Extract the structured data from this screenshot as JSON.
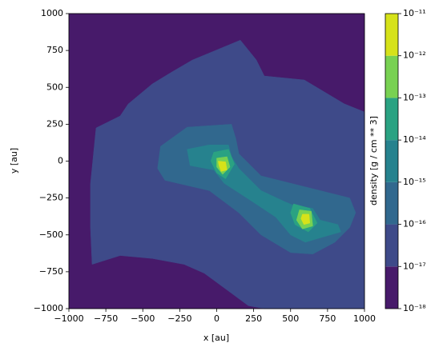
{
  "chart_data": {
    "type": "contourf",
    "xlabel": "x [au]",
    "ylabel": "y [au]",
    "colorbar_label": "density [g / cm ** 3]",
    "xlim": [
      -1000,
      1000
    ],
    "ylim": [
      -1000,
      1000
    ],
    "xticks": [
      {
        "value": -1000,
        "label": "−1000"
      },
      {
        "value": -750,
        "label": "−750"
      },
      {
        "value": -500,
        "label": "−500"
      },
      {
        "value": -250,
        "label": "−250"
      },
      0,
      250,
      500,
      750,
      1000
    ],
    "yticks": [
      {
        "value": -1000,
        "label": "−1000"
      },
      {
        "value": -750,
        "label": "−750"
      },
      {
        "value": -500,
        "label": "−500"
      },
      {
        "value": -250,
        "label": "−250"
      },
      0,
      250,
      500,
      750,
      1000
    ],
    "levels": [
      1e-18,
      1e-17,
      1e-16,
      1e-15,
      1e-14,
      1e-13,
      1e-12,
      1e-11
    ],
    "colors": [
      "#471a6a",
      "#3e4a89",
      "#31688e",
      "#26828e",
      "#2aa282",
      "#78d152",
      "#d6e21a"
    ],
    "log_colorbar": true,
    "cbar_ticks": [
      {
        "value": 1e-18,
        "label": "10⁻¹⁸"
      },
      {
        "value": 1e-17,
        "label": "10⁻¹⁷"
      },
      {
        "value": 1e-16,
        "label": "10⁻¹⁶"
      },
      {
        "value": 1e-15,
        "label": "10⁻¹⁵"
      },
      {
        "value": 1e-14,
        "label": "10⁻¹⁴"
      },
      {
        "value": 1e-13,
        "label": "10⁻¹³"
      },
      {
        "value": 1e-12,
        "label": "10⁻¹²"
      },
      {
        "value": 1e-11,
        "label": "10⁻¹¹"
      }
    ],
    "contours": [
      {
        "level": 1e-18,
        "polygons": [
          {
            "x": [
              -1000,
              1000,
              1000,
              -1000
            ],
            "y": [
              1000,
              1000,
              -1000,
              -1000
            ]
          }
        ]
      },
      {
        "level": 1e-17,
        "polygons": [
          {
            "x": [
              -310,
              -165,
              160,
              268,
              322,
              593,
              864,
              1000,
              1000,
              322,
              214,
              79,
              -84,
              -220,
              -436,
              -653,
              -843,
              -854,
              -854,
              -816,
              -653,
              -599,
              -436
            ],
            "y": [
              600,
              685,
              820,
              686,
              577,
              550,
              388,
              333,
              -1000,
              -1000,
              -980,
              -880,
              -760,
              -700,
              -660,
              -640,
              -700,
              -450,
              -154,
              225,
              306,
              387,
              523
            ]
          }
        ]
      },
      {
        "level": 1e-16,
        "polygons": [
          {
            "x": [
              -380,
              -200,
              100,
              130,
              150,
              300,
              500,
              700,
              900,
              940,
              900,
              800,
              650,
              500,
              300,
              150,
              -50,
              -350,
              -400
            ],
            "y": [
              100,
              230,
              250,
              150,
              50,
              -100,
              -150,
              -200,
              -250,
              -350,
              -450,
              -550,
              -630,
              -620,
              -500,
              -350,
              -200,
              -130,
              -50
            ]
          }
        ]
      },
      {
        "level": 1e-15,
        "polygons": [
          {
            "x": [
              -200,
              -50,
              80,
              100,
              150,
              300,
              450,
              520,
              650,
              700,
              820,
              840,
              700,
              600,
              500,
              400,
              250,
              50,
              -20,
              -180
            ],
            "y": [
              80,
              110,
              110,
              30,
              -50,
              -200,
              -270,
              -300,
              -320,
              -400,
              -430,
              -480,
              -520,
              -550,
              -500,
              -380,
              -280,
              -150,
              -60,
              -30
            ]
          }
        ]
      },
      {
        "level": 1e-14,
        "polygons": [
          {
            "x": [
              -20,
              80,
              120,
              60,
              0,
              -40
            ],
            "y": [
              60,
              80,
              -20,
              -120,
              -80,
              0
            ]
          },
          {
            "x": [
              520,
              630,
              680,
              620,
              530,
              500
            ],
            "y": [
              -290,
              -320,
              -420,
              -480,
              -430,
              -350
            ]
          }
        ]
      },
      {
        "level": 1e-13,
        "polygons": [
          {
            "x": [
              0,
              70,
              90,
              40,
              0
            ],
            "y": [
              20,
              30,
              -40,
              -90,
              -40
            ]
          },
          {
            "x": [
              560,
              640,
              650,
              580,
              540
            ],
            "y": [
              -330,
              -340,
              -440,
              -460,
              -400
            ]
          }
        ]
      },
      {
        "level": 1e-12,
        "polygons": [
          {
            "x": [
              10,
              60,
              70,
              30,
              15
            ],
            "y": [
              0,
              -5,
              -60,
              -70,
              -30
            ]
          },
          {
            "x": [
              580,
              625,
              630,
              590,
              570
            ],
            "y": [
              -360,
              -360,
              -420,
              -430,
              -390
            ]
          }
        ]
      }
    ]
  }
}
